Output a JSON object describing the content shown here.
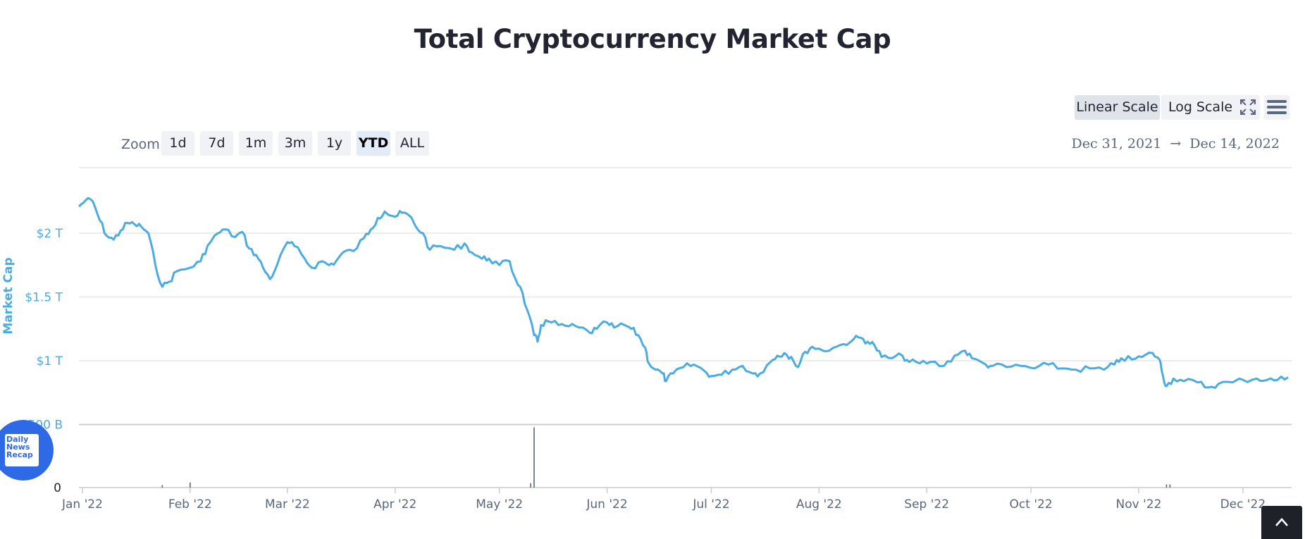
{
  "page": {
    "title": "Total Cryptocurrency Market Cap"
  },
  "toolbar": {
    "linear_label": "Linear Scale",
    "log_label": "Log Scale",
    "fullscreen_icon": "fullscreen-icon",
    "menu_icon": "hamburger-menu-icon"
  },
  "zoom": {
    "label": "Zoom",
    "buttons": [
      "1d",
      "7d",
      "1m",
      "3m",
      "1y",
      "YTD",
      "ALL"
    ],
    "active": "YTD"
  },
  "range": {
    "from": "Dec 31, 2021",
    "arrow": "→",
    "to": "Dec 14, 2022"
  },
  "badge": {
    "line1": "Daily",
    "line2": "News",
    "line3": "Recap"
  },
  "scroll_top_icon": "chevron-up-icon",
  "colors": {
    "line": "#4aace0",
    "axis_label": "#4aace0",
    "grid": "#e6e6e6",
    "volume": "#58667e"
  },
  "chart_data": {
    "type": "line",
    "title": "Total Cryptocurrency Market Cap",
    "ylabel": "Market Cap",
    "xlabel": "",
    "x_tick_labels": [
      "Jan '22",
      "Feb '22",
      "Mar '22",
      "Apr '22",
      "May '22",
      "Jun '22",
      "Jul '22",
      "Aug '22",
      "Sep '22",
      "Oct '22",
      "Nov '22",
      "Dec '22"
    ],
    "y_tick_labels": [
      "$2 T",
      "$1.5 T",
      "$1 T",
      "$500 B"
    ],
    "y_ticks": [
      2.0,
      1.5,
      1.0,
      0.5
    ],
    "ylim": [
      0.5,
      2.5
    ],
    "xlim": [
      "2021-12-31",
      "2022-12-14"
    ],
    "volume_tick_labels": [
      "0"
    ],
    "grid": true,
    "series": [
      {
        "values_unit": "trillion USD",
        "points": [
          [
            "2021-12-31",
            2.21
          ],
          [
            "2022-01-02",
            2.26
          ],
          [
            "2022-01-04",
            2.25
          ],
          [
            "2022-01-06",
            2.1
          ],
          [
            "2022-01-08",
            1.98
          ],
          [
            "2022-01-10",
            1.95
          ],
          [
            "2022-01-12",
            2.02
          ],
          [
            "2022-01-14",
            2.08
          ],
          [
            "2022-01-16",
            2.07
          ],
          [
            "2022-01-18",
            2.05
          ],
          [
            "2022-01-20",
            2.0
          ],
          [
            "2022-01-22",
            1.75
          ],
          [
            "2022-01-24",
            1.58
          ],
          [
            "2022-01-26",
            1.62
          ],
          [
            "2022-01-28",
            1.7
          ],
          [
            "2022-02-01",
            1.73
          ],
          [
            "2022-02-04",
            1.78
          ],
          [
            "2022-02-06",
            1.9
          ],
          [
            "2022-02-09",
            2.0
          ],
          [
            "2022-02-11",
            2.03
          ],
          [
            "2022-02-14",
            1.97
          ],
          [
            "2022-02-16",
            2.01
          ],
          [
            "2022-02-18",
            1.88
          ],
          [
            "2022-02-20",
            1.83
          ],
          [
            "2022-02-22",
            1.73
          ],
          [
            "2022-02-24",
            1.64
          ],
          [
            "2022-02-26",
            1.75
          ],
          [
            "2022-03-01",
            1.93
          ],
          [
            "2022-03-03",
            1.9
          ],
          [
            "2022-03-06",
            1.8
          ],
          [
            "2022-03-08",
            1.73
          ],
          [
            "2022-03-11",
            1.78
          ],
          [
            "2022-03-13",
            1.75
          ],
          [
            "2022-03-15",
            1.78
          ],
          [
            "2022-03-17",
            1.85
          ],
          [
            "2022-03-20",
            1.86
          ],
          [
            "2022-03-23",
            1.96
          ],
          [
            "2022-03-25",
            2.03
          ],
          [
            "2022-03-27",
            2.12
          ],
          [
            "2022-03-29",
            2.17
          ],
          [
            "2022-04-01",
            2.13
          ],
          [
            "2022-04-03",
            2.16
          ],
          [
            "2022-04-05",
            2.14
          ],
          [
            "2022-04-07",
            2.05
          ],
          [
            "2022-04-09",
            2.0
          ],
          [
            "2022-04-11",
            1.87
          ],
          [
            "2022-04-14",
            1.9
          ],
          [
            "2022-04-18",
            1.87
          ],
          [
            "2022-04-21",
            1.92
          ],
          [
            "2022-04-23",
            1.85
          ],
          [
            "2022-04-26",
            1.8
          ],
          [
            "2022-04-28",
            1.8
          ],
          [
            "2022-05-01",
            1.75
          ],
          [
            "2022-05-04",
            1.78
          ],
          [
            "2022-05-05",
            1.68
          ],
          [
            "2022-05-07",
            1.58
          ],
          [
            "2022-05-09",
            1.4
          ],
          [
            "2022-05-11",
            1.2
          ],
          [
            "2022-05-12",
            1.15
          ],
          [
            "2022-05-13",
            1.28
          ],
          [
            "2022-05-15",
            1.31
          ],
          [
            "2022-05-18",
            1.28
          ],
          [
            "2022-05-21",
            1.27
          ],
          [
            "2022-05-24",
            1.26
          ],
          [
            "2022-05-27",
            1.22
          ],
          [
            "2022-05-29",
            1.25
          ],
          [
            "2022-06-01",
            1.3
          ],
          [
            "2022-06-03",
            1.26
          ],
          [
            "2022-06-06",
            1.28
          ],
          [
            "2022-06-08",
            1.25
          ],
          [
            "2022-06-10",
            1.2
          ],
          [
            "2022-06-12",
            1.1
          ],
          [
            "2022-06-13",
            0.98
          ],
          [
            "2022-06-15",
            0.93
          ],
          [
            "2022-06-17",
            0.9
          ],
          [
            "2022-06-18",
            0.84
          ],
          [
            "2022-06-20",
            0.9
          ],
          [
            "2022-06-23",
            0.95
          ],
          [
            "2022-06-26",
            0.97
          ],
          [
            "2022-06-29",
            0.92
          ],
          [
            "2022-07-01",
            0.88
          ],
          [
            "2022-07-04",
            0.89
          ],
          [
            "2022-07-07",
            0.93
          ],
          [
            "2022-07-10",
            0.96
          ],
          [
            "2022-07-13",
            0.9
          ],
          [
            "2022-07-15",
            0.9
          ],
          [
            "2022-07-18",
            0.99
          ],
          [
            "2022-07-20",
            1.04
          ],
          [
            "2022-07-22",
            1.06
          ],
          [
            "2022-07-24",
            1.03
          ],
          [
            "2022-07-26",
            0.95
          ],
          [
            "2022-07-28",
            1.07
          ],
          [
            "2022-07-30",
            1.11
          ],
          [
            "2022-08-02",
            1.08
          ],
          [
            "2022-08-05",
            1.1
          ],
          [
            "2022-08-08",
            1.13
          ],
          [
            "2022-08-11",
            1.17
          ],
          [
            "2022-08-13",
            1.18
          ],
          [
            "2022-08-15",
            1.15
          ],
          [
            "2022-08-17",
            1.12
          ],
          [
            "2022-08-19",
            1.03
          ],
          [
            "2022-08-22",
            1.02
          ],
          [
            "2022-08-25",
            1.04
          ],
          [
            "2022-08-27",
            0.99
          ],
          [
            "2022-08-30",
            0.98
          ],
          [
            "2022-09-02",
            0.99
          ],
          [
            "2022-09-06",
            0.96
          ],
          [
            "2022-09-09",
            1.04
          ],
          [
            "2022-09-12",
            1.08
          ],
          [
            "2022-09-14",
            1.02
          ],
          [
            "2022-09-18",
            0.97
          ],
          [
            "2022-09-20",
            0.96
          ],
          [
            "2022-09-24",
            0.95
          ],
          [
            "2022-09-28",
            0.96
          ],
          [
            "2022-10-02",
            0.94
          ],
          [
            "2022-10-06",
            0.97
          ],
          [
            "2022-10-10",
            0.94
          ],
          [
            "2022-10-14",
            0.93
          ],
          [
            "2022-10-18",
            0.94
          ],
          [
            "2022-10-22",
            0.93
          ],
          [
            "2022-10-25",
            0.97
          ],
          [
            "2022-10-27",
            1.02
          ],
          [
            "2022-10-30",
            1.01
          ],
          [
            "2022-11-02",
            1.03
          ],
          [
            "2022-11-05",
            1.06
          ],
          [
            "2022-11-07",
            1.01
          ],
          [
            "2022-11-08",
            0.88
          ],
          [
            "2022-11-09",
            0.8
          ],
          [
            "2022-11-11",
            0.86
          ],
          [
            "2022-11-14",
            0.84
          ],
          [
            "2022-11-18",
            0.83
          ],
          [
            "2022-11-21",
            0.79
          ],
          [
            "2022-11-24",
            0.82
          ],
          [
            "2022-11-28",
            0.83
          ],
          [
            "2022-12-01",
            0.85
          ],
          [
            "2022-12-05",
            0.86
          ],
          [
            "2022-12-08",
            0.85
          ],
          [
            "2022-12-11",
            0.85
          ],
          [
            "2022-12-14",
            0.87
          ]
        ]
      }
    ]
  }
}
